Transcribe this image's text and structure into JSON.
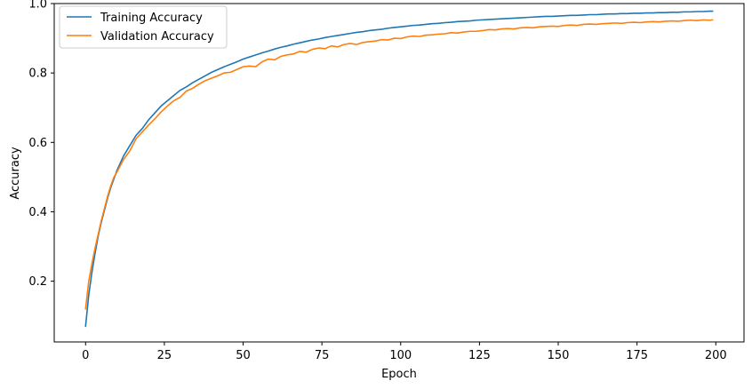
{
  "chart_data": {
    "type": "line",
    "title": "",
    "xlabel": "Epoch",
    "ylabel": "Accuracy",
    "xlim": [
      -9.95,
      208.95
    ],
    "ylim": [
      0.025,
      1.0
    ],
    "xticks": [
      0,
      25,
      50,
      75,
      100,
      125,
      150,
      175,
      200
    ],
    "yticks": [
      0.2,
      0.4,
      0.6,
      0.8,
      1.0
    ],
    "xtick_labels": [
      "0",
      "25",
      "50",
      "75",
      "100",
      "125",
      "150",
      "175",
      "200"
    ],
    "ytick_labels": [
      "0.2",
      "0.4",
      "0.6",
      "0.8",
      "1.0"
    ],
    "grid": false,
    "legend": {
      "position": "top-left"
    },
    "series": [
      {
        "name": "Training Accuracy",
        "color": "#1f77b4",
        "x": [
          0,
          1,
          2,
          3,
          4,
          5,
          6,
          7,
          8,
          9,
          10,
          12,
          14,
          16,
          18,
          20,
          22,
          24,
          26,
          28,
          30,
          32,
          34,
          36,
          38,
          40,
          42,
          44,
          46,
          48,
          50,
          52,
          54,
          56,
          58,
          60,
          62,
          64,
          66,
          68,
          70,
          72,
          74,
          76,
          78,
          80,
          82,
          84,
          86,
          88,
          90,
          92,
          94,
          96,
          98,
          100,
          102,
          104,
          106,
          108,
          110,
          112,
          114,
          116,
          118,
          120,
          122,
          124,
          126,
          128,
          130,
          132,
          134,
          136,
          138,
          140,
          142,
          144,
          146,
          148,
          150,
          152,
          154,
          156,
          158,
          160,
          162,
          164,
          166,
          168,
          170,
          172,
          174,
          176,
          178,
          180,
          182,
          184,
          186,
          188,
          190,
          192,
          194,
          196,
          198,
          199
        ],
        "values": [
          0.07,
          0.16,
          0.225,
          0.28,
          0.33,
          0.37,
          0.405,
          0.44,
          0.47,
          0.495,
          0.52,
          0.56,
          0.59,
          0.62,
          0.64,
          0.665,
          0.685,
          0.705,
          0.72,
          0.735,
          0.75,
          0.76,
          0.772,
          0.782,
          0.792,
          0.802,
          0.81,
          0.818,
          0.825,
          0.832,
          0.84,
          0.846,
          0.852,
          0.858,
          0.863,
          0.869,
          0.874,
          0.878,
          0.883,
          0.887,
          0.891,
          0.895,
          0.898,
          0.902,
          0.905,
          0.908,
          0.911,
          0.914,
          0.917,
          0.919,
          0.922,
          0.924,
          0.926,
          0.929,
          0.931,
          0.933,
          0.935,
          0.937,
          0.938,
          0.94,
          0.942,
          0.943,
          0.945,
          0.946,
          0.948,
          0.949,
          0.95,
          0.952,
          0.953,
          0.954,
          0.955,
          0.956,
          0.957,
          0.958,
          0.959,
          0.96,
          0.961,
          0.962,
          0.963,
          0.963,
          0.964,
          0.965,
          0.966,
          0.966,
          0.967,
          0.968,
          0.968,
          0.969,
          0.97,
          0.97,
          0.971,
          0.971,
          0.972,
          0.972,
          0.973,
          0.973,
          0.974,
          0.974,
          0.975,
          0.975,
          0.976,
          0.976,
          0.977,
          0.977,
          0.978,
          0.978
        ]
      },
      {
        "name": "Validation Accuracy",
        "color": "#ff7f0e",
        "x": [
          0,
          1,
          2,
          3,
          4,
          5,
          6,
          7,
          8,
          9,
          10,
          12,
          14,
          16,
          18,
          20,
          22,
          24,
          26,
          28,
          30,
          32,
          34,
          36,
          38,
          40,
          42,
          44,
          46,
          48,
          50,
          52,
          54,
          56,
          58,
          60,
          62,
          64,
          66,
          68,
          70,
          72,
          74,
          76,
          78,
          80,
          82,
          84,
          86,
          88,
          90,
          92,
          94,
          96,
          98,
          100,
          102,
          104,
          106,
          108,
          110,
          112,
          114,
          116,
          118,
          120,
          122,
          124,
          126,
          128,
          130,
          132,
          134,
          136,
          138,
          140,
          142,
          144,
          146,
          148,
          150,
          152,
          154,
          156,
          158,
          160,
          162,
          164,
          166,
          168,
          170,
          172,
          174,
          176,
          178,
          180,
          182,
          184,
          186,
          188,
          190,
          192,
          194,
          196,
          198,
          199
        ],
        "values": [
          0.12,
          0.2,
          0.25,
          0.295,
          0.335,
          0.375,
          0.41,
          0.445,
          0.475,
          0.5,
          0.515,
          0.55,
          0.575,
          0.61,
          0.63,
          0.65,
          0.668,
          0.688,
          0.705,
          0.72,
          0.73,
          0.748,
          0.756,
          0.768,
          0.778,
          0.785,
          0.792,
          0.8,
          0.802,
          0.81,
          0.818,
          0.82,
          0.818,
          0.832,
          0.84,
          0.838,
          0.848,
          0.852,
          0.855,
          0.862,
          0.86,
          0.868,
          0.872,
          0.87,
          0.878,
          0.875,
          0.882,
          0.885,
          0.882,
          0.888,
          0.89,
          0.892,
          0.896,
          0.895,
          0.9,
          0.899,
          0.904,
          0.906,
          0.905,
          0.909,
          0.91,
          0.912,
          0.913,
          0.916,
          0.915,
          0.918,
          0.92,
          0.92,
          0.922,
          0.925,
          0.924,
          0.927,
          0.928,
          0.927,
          0.93,
          0.931,
          0.93,
          0.933,
          0.934,
          0.935,
          0.934,
          0.937,
          0.938,
          0.937,
          0.94,
          0.941,
          0.94,
          0.942,
          0.943,
          0.944,
          0.943,
          0.945,
          0.946,
          0.945,
          0.947,
          0.948,
          0.947,
          0.949,
          0.95,
          0.949,
          0.951,
          0.952,
          0.951,
          0.953,
          0.952,
          0.953
        ]
      }
    ]
  }
}
